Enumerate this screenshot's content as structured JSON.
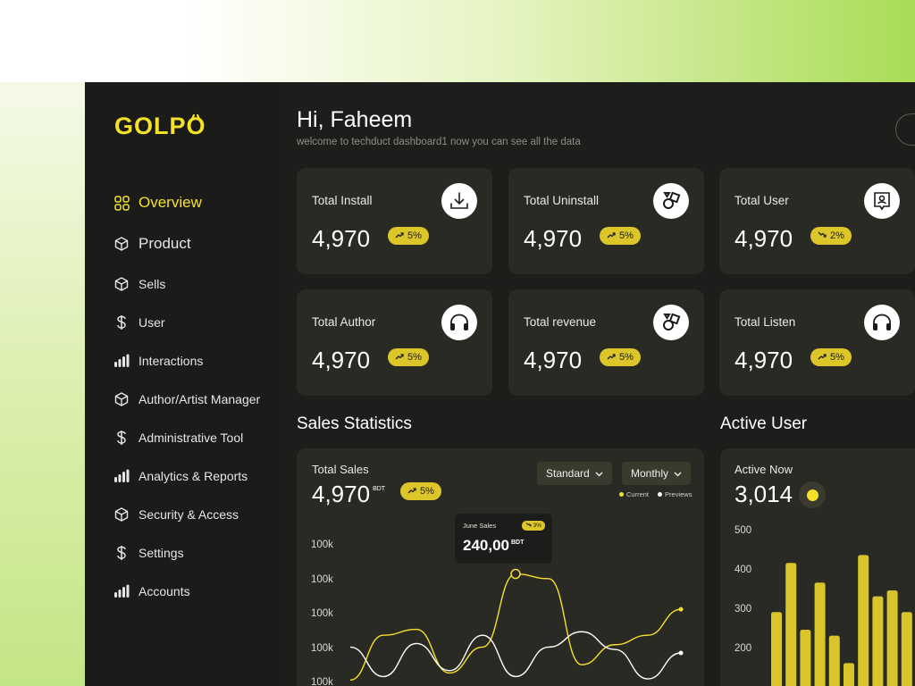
{
  "brand": {
    "name": "GOLPO",
    "accent": "#f5e12a"
  },
  "sidebar": {
    "items": [
      {
        "label": "Overview",
        "icon": "grid-icon",
        "active": true,
        "big": true
      },
      {
        "label": "Product",
        "icon": "box-icon",
        "active": false,
        "big": true
      },
      {
        "label": "Sells",
        "icon": "box-icon",
        "active": false,
        "big": false
      },
      {
        "label": "User",
        "icon": "dollar-icon",
        "active": false,
        "big": false
      },
      {
        "label": "Interactions",
        "icon": "bars-icon",
        "active": false,
        "big": false
      },
      {
        "label": "Author/Artist Manager",
        "icon": "box-icon",
        "active": false,
        "big": false
      },
      {
        "label": "Administrative Tool",
        "icon": "dollar-icon",
        "active": false,
        "big": false
      },
      {
        "label": "Analytics & Reports",
        "icon": "bars-icon",
        "active": false,
        "big": false
      },
      {
        "label": "Security & Access",
        "icon": "box-icon",
        "active": false,
        "big": false
      },
      {
        "label": "Settings",
        "icon": "dollar-icon",
        "active": false,
        "big": false
      },
      {
        "label": "Accounts",
        "icon": "bars-icon",
        "active": false,
        "big": false
      }
    ]
  },
  "header": {
    "greeting": "Hi, Faheem",
    "subtitle": "welcome to techduct dashboard1 now you can see all the data"
  },
  "stats": [
    {
      "label": "Total Install",
      "value": "4,970",
      "change": "5%",
      "trend": "up",
      "icon": "download-icon"
    },
    {
      "label": "Total Uninstall",
      "value": "4,970",
      "change": "5%",
      "trend": "up",
      "icon": "shapes-icon"
    },
    {
      "label": "Total User",
      "value": "4,970",
      "change": "2%",
      "trend": "down",
      "icon": "user-badge-icon"
    },
    {
      "label": "Total Author",
      "value": "4,970",
      "change": "5%",
      "trend": "up",
      "icon": "headphones-icon"
    },
    {
      "label": "Total revenue",
      "value": "4,970",
      "change": "5%",
      "trend": "up",
      "icon": "shapes-icon"
    },
    {
      "label": "Total Listen",
      "value": "4,970",
      "change": "5%",
      "trend": "up",
      "icon": "headphones-icon"
    }
  ],
  "sales": {
    "section_title": "Sales Statistics",
    "label": "Total Sales",
    "value": "4,970",
    "unit": "BDT",
    "change": "5%",
    "dropdown_standard": "Standard",
    "dropdown_monthly": "Monthly",
    "legend_current": "Current",
    "legend_previous": "Previews",
    "tooltip_title": "June Sales",
    "tooltip_value": "240,00",
    "tooltip_unit": "BDT",
    "tooltip_change": "3%",
    "y_ticks": [
      "100k",
      "100k",
      "100k",
      "100k",
      "100k"
    ]
  },
  "active_user": {
    "section_title": "Active User",
    "label": "Active Now",
    "value": "3,014"
  },
  "chart_data": [
    {
      "type": "line",
      "title": "",
      "yticks": [
        "100k",
        "100k",
        "100k",
        "100k",
        "100k"
      ],
      "series": [
        {
          "name": "Current",
          "color": "#f5e12a",
          "values": [
            0.02,
            0.4,
            0.45,
            0.08,
            0.3,
            0.92,
            0.88,
            0.15,
            0.32,
            0.4,
            0.62
          ]
        },
        {
          "name": "Previews",
          "color": "#ffffff",
          "values": [
            0.3,
            0.05,
            0.33,
            0.1,
            0.4,
            0.05,
            0.3,
            0.43,
            0.28,
            0.03,
            0.25
          ]
        }
      ]
    },
    {
      "type": "bar",
      "title": "",
      "yticks": [
        500,
        400,
        300,
        200
      ],
      "ylim": [
        100,
        500
      ],
      "values": [
        295,
        420,
        250,
        370,
        235,
        165,
        440,
        335,
        350,
        295
      ],
      "color": "#d8c52b"
    }
  ]
}
